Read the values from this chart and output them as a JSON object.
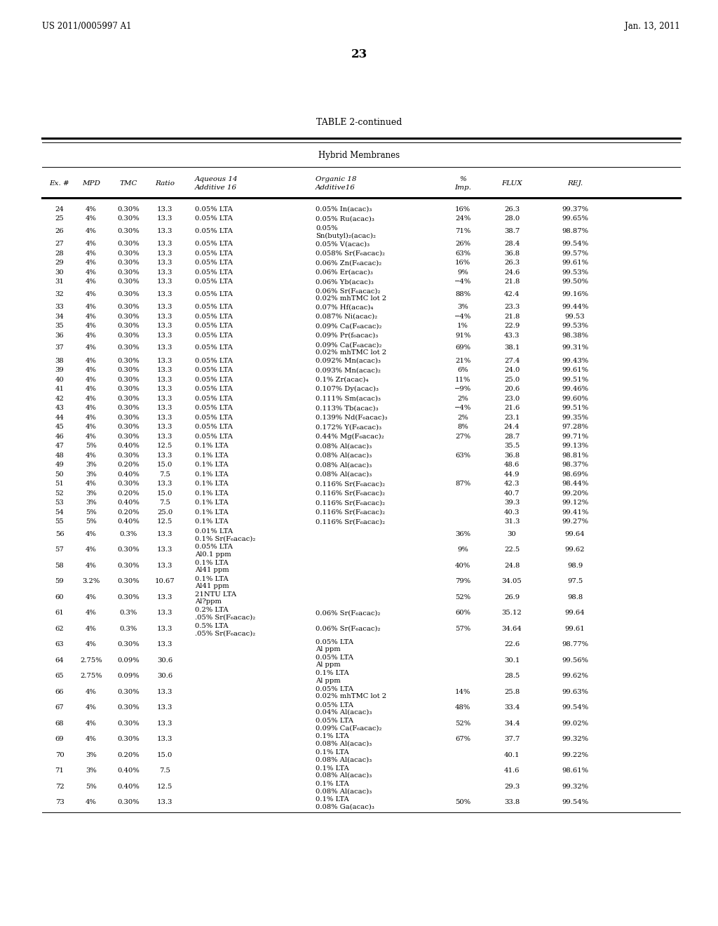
{
  "header_left": "US 2011/0005997 A1",
  "header_right": "Jan. 13, 2011",
  "page_number": "23",
  "table_title": "TABLE 2-continued",
  "section_title": "Hybrid Membranes",
  "rows": [
    [
      "24",
      "4%",
      "0.30%",
      "13.3",
      "0.05% LTA",
      "0.05% In(acac)₃",
      "16%",
      "26.3",
      "99.37%"
    ],
    [
      "25",
      "4%",
      "0.30%",
      "13.3",
      "0.05% LTA",
      "0.05% Ru(acac)₃",
      "24%",
      "28.0",
      "99.65%"
    ],
    [
      "26",
      "4%",
      "0.30%",
      "13.3",
      "0.05% LTA",
      "0.05%\nSn(butyl)₂(acac)₂",
      "71%",
      "38.7",
      "98.87%"
    ],
    [
      "27",
      "4%",
      "0.30%",
      "13.3",
      "0.05% LTA",
      "0.05% V(acac)₃",
      "26%",
      "28.4",
      "99.54%"
    ],
    [
      "28",
      "4%",
      "0.30%",
      "13.3",
      "0.05% LTA",
      "0.058% Sr(F₆acac)₂",
      "63%",
      "36.8",
      "99.57%"
    ],
    [
      "29",
      "4%",
      "0.30%",
      "13.3",
      "0.05% LTA",
      "0.06% Zn(F₆acac)₂",
      "16%",
      "26.3",
      "99.61%"
    ],
    [
      "30",
      "4%",
      "0.30%",
      "13.3",
      "0.05% LTA",
      "0.06% Er(acac)₃",
      "9%",
      "24.6",
      "99.53%"
    ],
    [
      "31",
      "4%",
      "0.30%",
      "13.3",
      "0.05% LTA",
      "0.06% Yb(acac)₃",
      "−4%",
      "21.8",
      "99.50%"
    ],
    [
      "32",
      "4%",
      "0.30%",
      "13.3",
      "0.05% LTA",
      "0.06% Sr(F₆acac)₂\n0.02% mhTMC lot 2",
      "88%",
      "42.4",
      "99.16%"
    ],
    [
      "33",
      "4%",
      "0.30%",
      "13.3",
      "0.05% LTA",
      "0.07% Hf(acac)₄",
      "3%",
      "23.3",
      "99.44%"
    ],
    [
      "34",
      "4%",
      "0.30%",
      "13.3",
      "0.05% LTA",
      "0.087% Ni(acac)₂",
      "−4%",
      "21.8",
      "99.53"
    ],
    [
      "35",
      "4%",
      "0.30%",
      "13.3",
      "0.05% LTA",
      "0.09% Ca(F₆acac)₂",
      "1%",
      "22.9",
      "99.53%"
    ],
    [
      "36",
      "4%",
      "0.30%",
      "13.3",
      "0.05% LTA",
      "0.09% Pr(f₆acac)₃",
      "91%",
      "43.3",
      "98.38%"
    ],
    [
      "37",
      "4%",
      "0.30%",
      "13.3",
      "0.05% LTA",
      "0.09% Ca(F₆acac)₂\n0.02% mhTMC lot 2",
      "69%",
      "38.1",
      "99.31%"
    ],
    [
      "38",
      "4%",
      "0.30%",
      "13.3",
      "0.05% LTA",
      "0.092% Mn(acac)₃",
      "21%",
      "27.4",
      "99.43%"
    ],
    [
      "39",
      "4%",
      "0.30%",
      "13.3",
      "0.05% LTA",
      "0.093% Mn(acac)₂",
      "6%",
      "24.0",
      "99.61%"
    ],
    [
      "40",
      "4%",
      "0.30%",
      "13.3",
      "0.05% LTA",
      "0.1% Zr(acac)₄",
      "11%",
      "25.0",
      "99.51%"
    ],
    [
      "41",
      "4%",
      "0.30%",
      "13.3",
      "0.05% LTA",
      "0.107% Dy(acac)₃",
      "−9%",
      "20.6",
      "99.46%"
    ],
    [
      "42",
      "4%",
      "0.30%",
      "13.3",
      "0.05% LTA",
      "0.111% Sm(acac)₃",
      "2%",
      "23.0",
      "99.60%"
    ],
    [
      "43",
      "4%",
      "0.30%",
      "13.3",
      "0.05% LTA",
      "0.113% Tb(acac)₃",
      "−4%",
      "21.6",
      "99.51%"
    ],
    [
      "44",
      "4%",
      "0.30%",
      "13.3",
      "0.05% LTA",
      "0.139% Nd(F₆acac)₃",
      "2%",
      "23.1",
      "99.35%"
    ],
    [
      "45",
      "4%",
      "0.30%",
      "13.3",
      "0.05% LTA",
      "0.172% Y(F₆acac)₃",
      "8%",
      "24.4",
      "97.28%"
    ],
    [
      "46",
      "4%",
      "0.30%",
      "13.3",
      "0.05% LTA",
      "0.44% Mg(F₆acac)₂",
      "27%",
      "28.7",
      "99.71%"
    ],
    [
      "47",
      "5%",
      "0.40%",
      "12.5",
      "0.1% LTA",
      "0.08% Al(acac)₃",
      "",
      "35.5",
      "99.13%"
    ],
    [
      "48",
      "4%",
      "0.30%",
      "13.3",
      "0.1% LTA",
      "0.08% Al(acac)₃",
      "63%",
      "36.8",
      "98.81%"
    ],
    [
      "49",
      "3%",
      "0.20%",
      "15.0",
      "0.1% LTA",
      "0.08% Al(acac)₃",
      "",
      "48.6",
      "98.37%"
    ],
    [
      "50",
      "3%",
      "0.40%",
      "7.5",
      "0.1% LTA",
      "0.08% Al(acac)₃",
      "",
      "44.9",
      "98.69%"
    ],
    [
      "51",
      "4%",
      "0.30%",
      "13.3",
      "0.1% LTA",
      "0.116% Sr(F₆acac)₂",
      "87%",
      "42.3",
      "98.44%"
    ],
    [
      "52",
      "3%",
      "0.20%",
      "15.0",
      "0.1% LTA",
      "0.116% Sr(F₆acac)₂",
      "",
      "40.7",
      "99.20%"
    ],
    [
      "53",
      "3%",
      "0.40%",
      "7.5",
      "0.1% LTA",
      "0.116% Sr(F₆acac)₂",
      "",
      "39.3",
      "99.12%"
    ],
    [
      "54",
      "5%",
      "0.20%",
      "25.0",
      "0.1% LTA",
      "0.116% Sr(F₆acac)₂",
      "",
      "40.3",
      "99.41%"
    ],
    [
      "55",
      "5%",
      "0.40%",
      "12.5",
      "0.1% LTA",
      "0.116% Sr(F₆acac)₂",
      "",
      "31.3",
      "99.27%"
    ],
    [
      "56",
      "4%",
      "0.3%",
      "13.3",
      "0.01% LTA\n0.1% Sr(F₆acac)₂",
      "",
      "36%",
      "30",
      "99.64"
    ],
    [
      "57",
      "4%",
      "0.30%",
      "13.3",
      "0.05% LTA\nAl0.1 ppm",
      "",
      "9%",
      "22.5",
      "99.62"
    ],
    [
      "58",
      "4%",
      "0.30%",
      "13.3",
      "0.1% LTA\nAl41 ppm",
      "",
      "40%",
      "24.8",
      "98.9"
    ],
    [
      "59",
      "3.2%",
      "0.30%",
      "10.67",
      "0.1% LTA\nAl41 ppm",
      "",
      "79%",
      "34.05",
      "97.5"
    ],
    [
      "60",
      "4%",
      "0.30%",
      "13.3",
      "21NTU LTA\nAl?ppm",
      "",
      "52%",
      "26.9",
      "98.8"
    ],
    [
      "61",
      "4%",
      "0.3%",
      "13.3",
      "0.2% LTA\n.05% Sr(F₆acac)₂",
      "0.06% Sr(F₆acac)₂",
      "60%",
      "35.12",
      "99.64"
    ],
    [
      "62",
      "4%",
      "0.3%",
      "13.3",
      "0.5% LTA\n.05% Sr(F₆acac)₂",
      "0.06% Sr(F₆acac)₂",
      "57%",
      "34.64",
      "99.61"
    ],
    [
      "63",
      "4%",
      "0.30%",
      "13.3",
      "",
      "0.05% LTA\nAl ppm",
      "",
      "22.6",
      "98.77%"
    ],
    [
      "64",
      "2.75%",
      "0.09%",
      "30.6",
      "",
      "0.05% LTA\nAl ppm",
      "",
      "30.1",
      "99.56%"
    ],
    [
      "65",
      "2.75%",
      "0.09%",
      "30.6",
      "",
      "0.1% LTA\nAl ppm",
      "",
      "28.5",
      "99.62%"
    ],
    [
      "66",
      "4%",
      "0.30%",
      "13.3",
      "",
      "0.05% LTA\n0.02% mhTMC lot 2",
      "14%",
      "25.8",
      "99.63%"
    ],
    [
      "67",
      "4%",
      "0.30%",
      "13.3",
      "",
      "0.05% LTA\n0.04% Al(acac)₃",
      "48%",
      "33.4",
      "99.54%"
    ],
    [
      "68",
      "4%",
      "0.30%",
      "13.3",
      "",
      "0.05% LTA\n0.09% Ca(F₆acac)₂",
      "52%",
      "34.4",
      "99.02%"
    ],
    [
      "69",
      "4%",
      "0.30%",
      "13.3",
      "",
      "0.1% LTA\n0.08% Al(acac)₃",
      "67%",
      "37.7",
      "99.32%"
    ],
    [
      "70",
      "3%",
      "0.20%",
      "15.0",
      "",
      "0.1% LTA\n0.08% Al(acac)₃",
      "",
      "40.1",
      "99.22%"
    ],
    [
      "71",
      "3%",
      "0.40%",
      "7.5",
      "",
      "0.1% LTA\n0.08% Al(acac)₃",
      "",
      "41.6",
      "98.61%"
    ],
    [
      "72",
      "5%",
      "0.40%",
      "12.5",
      "",
      "0.1% LTA\n0.08% Al(acac)₃",
      "",
      "29.3",
      "99.32%"
    ],
    [
      "73",
      "4%",
      "0.30%",
      "13.3",
      "",
      "0.1% LTA\n0.08% Ga(acac)₃",
      "50%",
      "33.8",
      "99.54%"
    ]
  ]
}
